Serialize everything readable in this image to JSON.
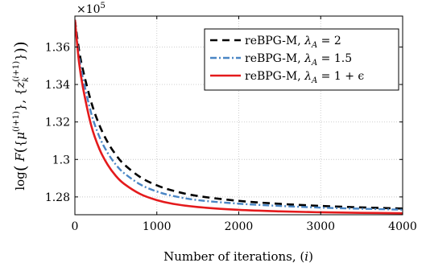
{
  "chart_data": {
    "type": "line",
    "xlabel": "Number of iterations, (i)",
    "ylabel": "log( F( {μ^(i+1)}, {z_k^(i+1)} ) )",
    "exponent_label": "×10",
    "exponent_power": "5",
    "xlim": [
      0,
      4000
    ],
    "ylim": [
      1.2705,
      1.3765
    ],
    "x_ticks": [
      0,
      1000,
      2000,
      3000,
      4000
    ],
    "x_tick_labels": [
      "0",
      "1000",
      "2000",
      "3000",
      "4000"
    ],
    "y_ticks": [
      1.28,
      1.3,
      1.32,
      1.34,
      1.36
    ],
    "y_tick_labels": [
      "1.28",
      "1.3",
      "1.32",
      "1.34",
      "1.36"
    ],
    "grid": true,
    "legend_position": "top-right",
    "series": [
      {
        "name": "reBPG-M, λ_A = 2",
        "name_plain": "reBPG-M, ",
        "name_math": "λ",
        "name_sub": "A",
        "name_tail": " = 2",
        "color": "#000000",
        "dash": "9,6",
        "width": 2.6,
        "x": [
          0,
          50,
          100,
          200,
          300,
          400,
          500,
          600,
          800,
          1000,
          1200,
          1500,
          2000,
          2500,
          3000,
          3500,
          4000
        ],
        "values": [
          1.3745,
          1.3585,
          1.3475,
          1.3305,
          1.3182,
          1.3092,
          1.3025,
          1.2974,
          1.2905,
          1.2862,
          1.2833,
          1.2805,
          1.2779,
          1.2763,
          1.2752,
          1.2744,
          1.2738
        ]
      },
      {
        "name": "reBPG-M, λ_A = 1.5",
        "name_plain": "reBPG-M, ",
        "name_math": "λ",
        "name_sub": "A",
        "name_tail": " = 1.5",
        "color": "#4a86c5",
        "dash": "8,3,2,3",
        "width": 2.4,
        "x": [
          0,
          50,
          100,
          200,
          300,
          400,
          500,
          600,
          800,
          1000,
          1200,
          1500,
          2000,
          2500,
          3000,
          3500,
          4000
        ],
        "values": [
          1.3745,
          1.3555,
          1.343,
          1.3245,
          1.312,
          1.3035,
          1.2972,
          1.2927,
          1.2866,
          1.2829,
          1.2805,
          1.2783,
          1.2764,
          1.2752,
          1.2743,
          1.2737,
          1.2732
        ]
      },
      {
        "name": "reBPG-M, λ_A = 1 + ϵ",
        "name_plain": "reBPG-M, ",
        "name_math": "λ",
        "name_sub": "A",
        "name_tail": " = 1 + ϵ",
        "color": "#e41a1c",
        "dash": "",
        "width": 2.6,
        "x": [
          0,
          50,
          100,
          200,
          300,
          400,
          500,
          600,
          800,
          1000,
          1200,
          1500,
          2000,
          2500,
          3000,
          3500,
          4000
        ],
        "values": [
          1.3745,
          1.352,
          1.338,
          1.318,
          1.3055,
          1.2972,
          1.2912,
          1.287,
          1.2815,
          1.2783,
          1.2763,
          1.2746,
          1.2731,
          1.2723,
          1.2718,
          1.2715,
          1.2713
        ]
      }
    ]
  }
}
